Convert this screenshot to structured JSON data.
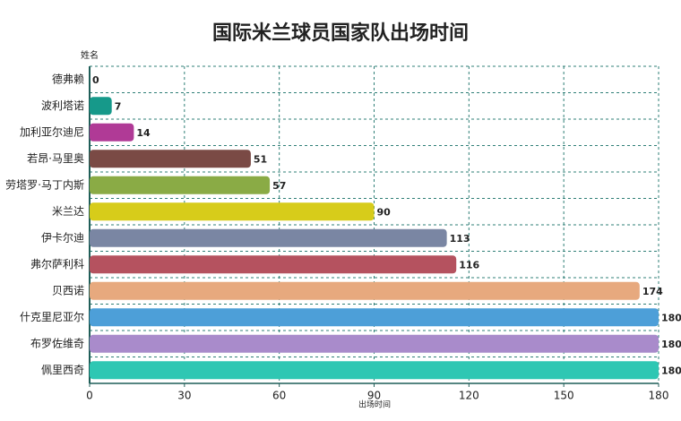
{
  "chart_data": {
    "type": "barh",
    "title": "国际米兰球员国家队出场时间",
    "y_label": "姓名",
    "x_label": "出场时间",
    "categories": [
      "德弗赖",
      "波利塔诺",
      "加利亚尔迪尼",
      "若昂·马里奥",
      "劳塔罗·马丁内斯",
      "米兰达",
      "伊卡尔迪",
      "弗尔萨利科",
      "贝西诺",
      "什克里尼亚尔",
      "布罗佐维奇",
      "佩里西奇"
    ],
    "values": [
      0,
      7,
      14,
      51,
      57,
      90,
      113,
      116,
      174,
      180,
      180,
      180
    ],
    "colors": [
      "#16998a",
      "#16998a",
      "#b03a96",
      "#7a4a45",
      "#8aab45",
      "#d7cc1a",
      "#7a86a3",
      "#b5525f",
      "#e7a97e",
      "#4d9fd8",
      "#a98bcb",
      "#2ec7b3"
    ],
    "xlim": [
      0,
      180
    ],
    "xticks": [
      0,
      30,
      60,
      90,
      120,
      150,
      180
    ],
    "grid": true
  }
}
